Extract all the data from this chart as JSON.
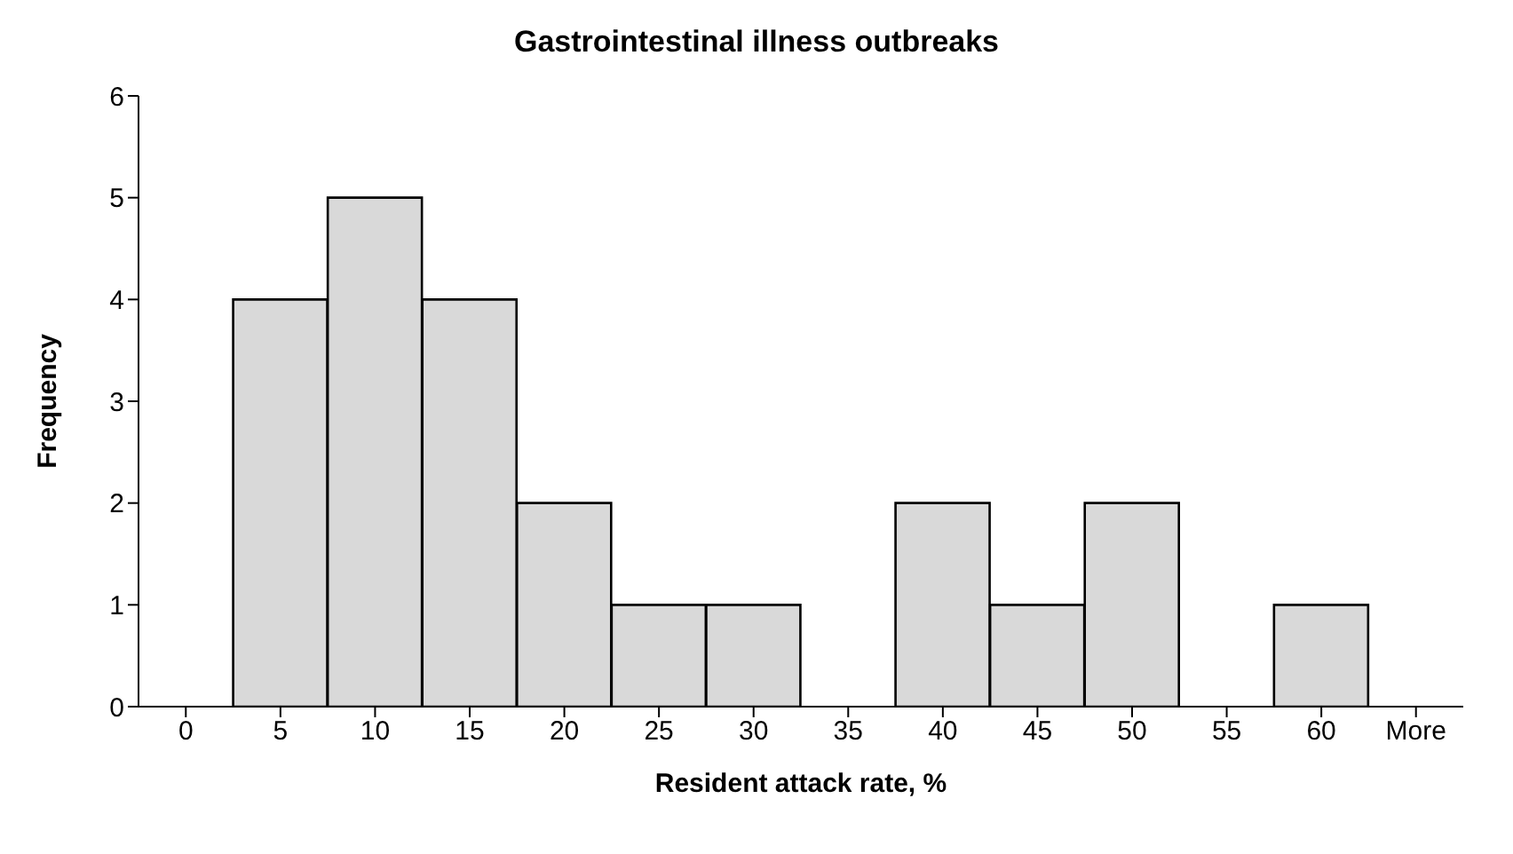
{
  "chart_data": {
    "type": "bar",
    "title": "Gastrointestinal illness outbreaks",
    "xlabel": "Resident attack rate, %",
    "ylabel": "Frequency",
    "categories": [
      "0",
      "5",
      "10",
      "15",
      "20",
      "25",
      "30",
      "35",
      "40",
      "45",
      "50",
      "55",
      "60",
      "More"
    ],
    "values": [
      0,
      4,
      5,
      4,
      2,
      1,
      1,
      0,
      2,
      1,
      2,
      0,
      1,
      0
    ],
    "color": "#d9d9d9",
    "ylim": [
      0,
      6
    ],
    "yticks": [
      0,
      1,
      2,
      3,
      4,
      5,
      6
    ],
    "grid": false,
    "legend": false
  }
}
